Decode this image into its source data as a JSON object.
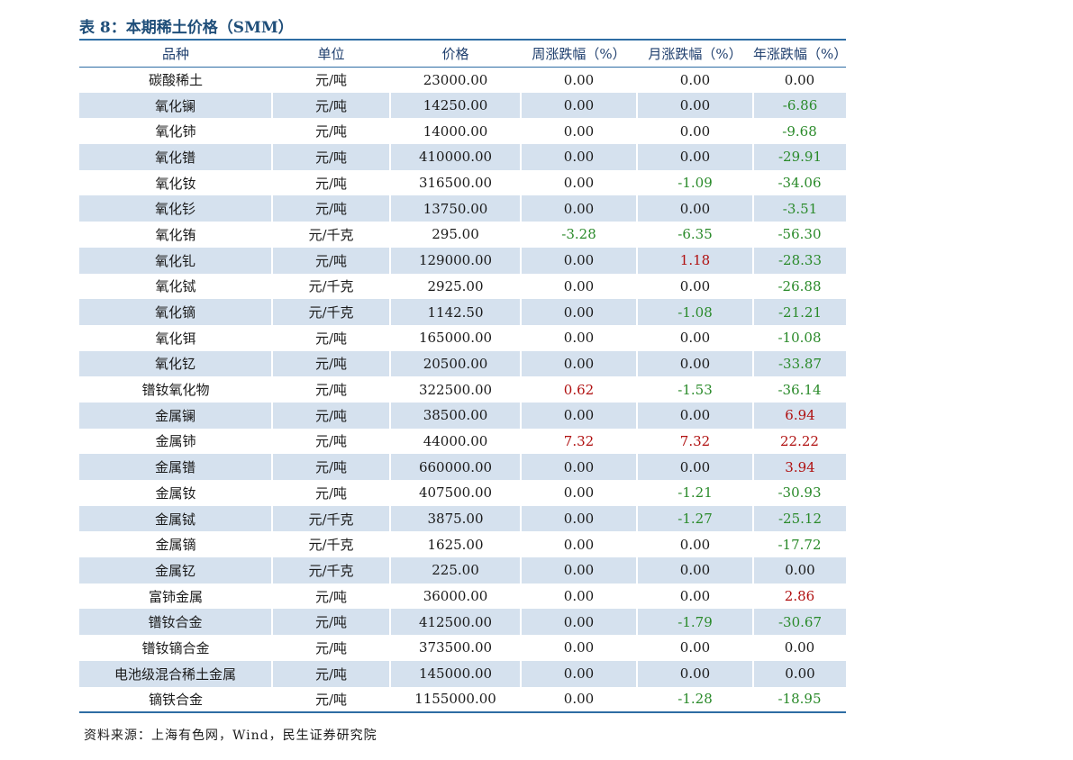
{
  "title": "表 8：本期稀土价格（SMM）",
  "headers": [
    "品种",
    "单位",
    "价格",
    "周涨跌幅（%）",
    "月涨跌幅（%）",
    "年涨跌幅（%）"
  ],
  "rows": [
    [
      "碳酸稀土",
      "元/吨",
      "23000.00",
      "0.00",
      "0.00",
      "0.00"
    ],
    [
      "氧化镧",
      "元/吨",
      "14250.00",
      "0.00",
      "0.00",
      "-6.86"
    ],
    [
      "氧化铈",
      "元/吨",
      "14000.00",
      "0.00",
      "0.00",
      "-9.68"
    ],
    [
      "氧化镨",
      "元/吨",
      "410000.00",
      "0.00",
      "0.00",
      "-29.91"
    ],
    [
      "氧化钕",
      "元/吨",
      "316500.00",
      "0.00",
      "-1.09",
      "-34.06"
    ],
    [
      "氧化钐",
      "元/吨",
      "13750.00",
      "0.00",
      "0.00",
      "-3.51"
    ],
    [
      "氧化铕",
      "元/千克",
      "295.00",
      "-3.28",
      "-6.35",
      "-56.30"
    ],
    [
      "氧化钆",
      "元/吨",
      "129000.00",
      "0.00",
      "1.18",
      "-28.33"
    ],
    [
      "氧化铽",
      "元/千克",
      "2925.00",
      "0.00",
      "0.00",
      "-26.88"
    ],
    [
      "氧化镝",
      "元/千克",
      "1142.50",
      "0.00",
      "-1.08",
      "-21.21"
    ],
    [
      "氧化铒",
      "元/吨",
      "165000.00",
      "0.00",
      "0.00",
      "-10.08"
    ],
    [
      "氧化钇",
      "元/吨",
      "20500.00",
      "0.00",
      "0.00",
      "-33.87"
    ],
    [
      "镨钕氧化物",
      "元/吨",
      "322500.00",
      "0.62",
      "-1.53",
      "-36.14"
    ],
    [
      "金属镧",
      "元/吨",
      "38500.00",
      "0.00",
      "0.00",
      "6.94"
    ],
    [
      "金属铈",
      "元/吨",
      "44000.00",
      "7.32",
      "7.32",
      "22.22"
    ],
    [
      "金属镨",
      "元/吨",
      "660000.00",
      "0.00",
      "0.00",
      "3.94"
    ],
    [
      "金属钕",
      "元/吨",
      "407500.00",
      "0.00",
      "-1.21",
      "-30.93"
    ],
    [
      "金属铽",
      "元/千克",
      "3875.00",
      "0.00",
      "-1.27",
      "-25.12"
    ],
    [
      "金属镝",
      "元/千克",
      "1625.00",
      "0.00",
      "0.00",
      "-17.72"
    ],
    [
      "金属钇",
      "元/千克",
      "225.00",
      "0.00",
      "0.00",
      "0.00"
    ],
    [
      "富铈金属",
      "元/吨",
      "36000.00",
      "0.00",
      "0.00",
      "2.86"
    ],
    [
      "镨钕合金",
      "元/吨",
      "412500.00",
      "0.00",
      "-1.79",
      "-30.67"
    ],
    [
      "镨钕镝合金",
      "元/吨",
      "373500.00",
      "0.00",
      "0.00",
      "0.00"
    ],
    [
      "电池级混合稀土金属",
      "元/吨",
      "145000.00",
      "0.00",
      "0.00",
      "0.00"
    ],
    [
      "镝铁合金",
      "元/吨",
      "1155000.00",
      "0.00",
      "-1.28",
      "-18.95"
    ]
  ],
  "colors": {
    "positive": "#b01010",
    "negative": "#2a8a2a",
    "alt_row": "#d5e1ee",
    "rule": "#2e6da4"
  },
  "source": "资料来源：上海有色网，Wind，民生证券研究院"
}
